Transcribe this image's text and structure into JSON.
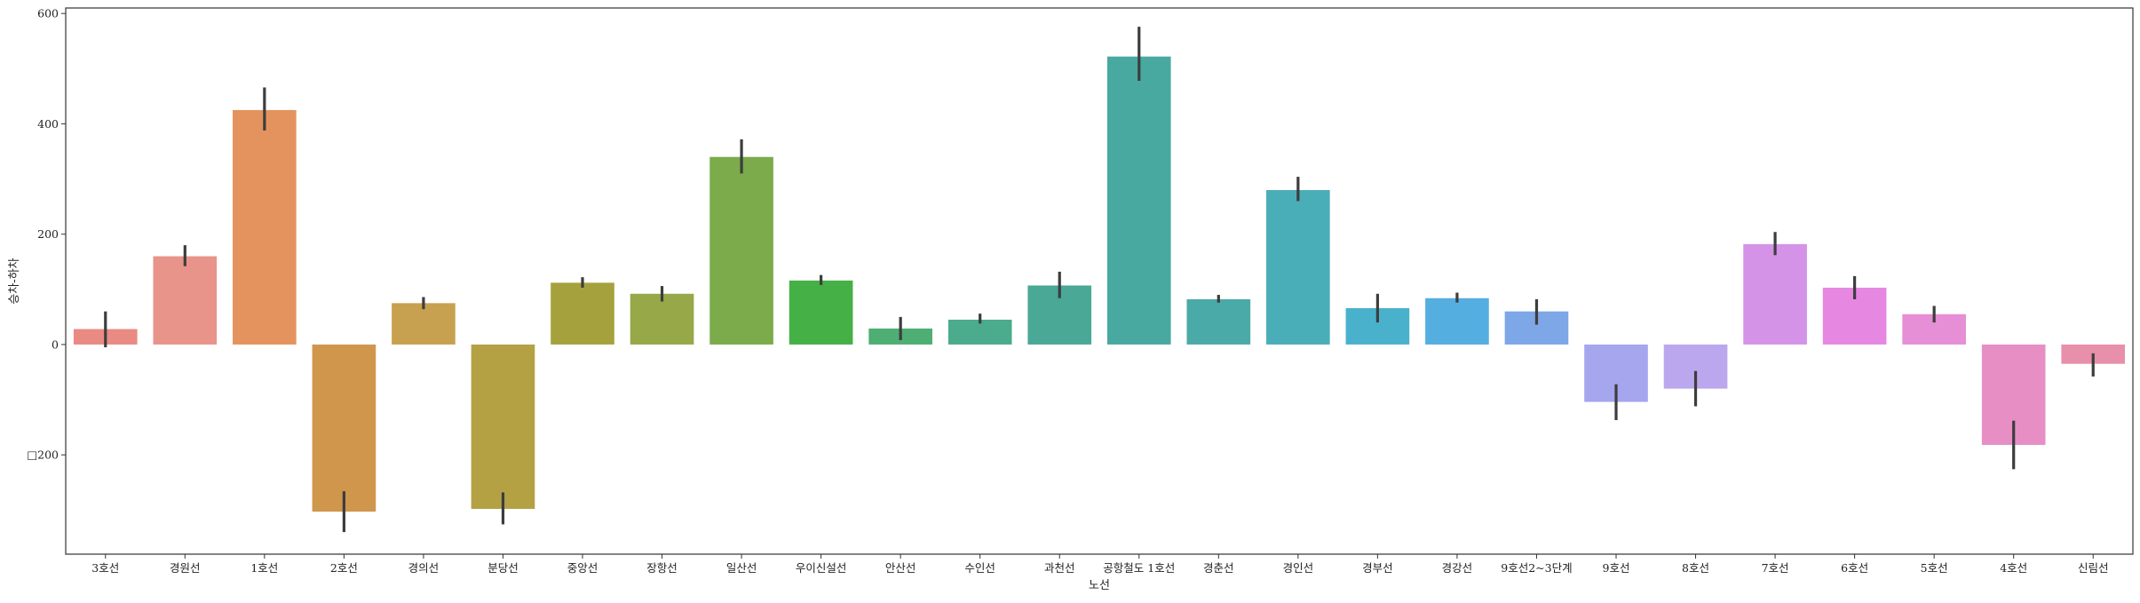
{
  "chart_data": {
    "type": "bar",
    "title": "",
    "xlabel": "노선",
    "ylabel": "승차-하차",
    "ylim": [
      -380,
      610
    ],
    "yticks": [
      {
        "value": 600,
        "label": "600"
      },
      {
        "value": 400,
        "label": "400"
      },
      {
        "value": 200,
        "label": "200"
      },
      {
        "value": 0,
        "label": "0"
      },
      {
        "value": -200,
        "label": "□200"
      }
    ],
    "grid": false,
    "legend": "none",
    "categories": [
      "3호선",
      "경원선",
      "1호선",
      "2호선",
      "경의선",
      "분당선",
      "중앙선",
      "장항선",
      "일산선",
      "우이신설선",
      "안산선",
      "수인선",
      "과천선",
      "공항철도 1호선",
      "경춘선",
      "경인선",
      "경부선",
      "경강선",
      "9호선2~3단계",
      "9호선",
      "8호선",
      "7호선",
      "6호선",
      "5호선",
      "4호선",
      "신림선"
    ],
    "values": [
      28,
      160,
      425,
      -303,
      75,
      -298,
      112,
      92,
      340,
      116,
      29,
      45,
      107,
      522,
      82,
      280,
      66,
      84,
      60,
      -104,
      -80,
      182,
      103,
      55,
      -182,
      -35
    ],
    "error_low": [
      -5,
      142,
      388,
      -340,
      64,
      -326,
      103,
      78,
      310,
      108,
      8,
      38,
      84,
      478,
      76,
      260,
      40,
      76,
      36,
      -137,
      -112,
      162,
      82,
      40,
      -226,
      -58
    ],
    "error_high": [
      60,
      180,
      466,
      -266,
      86,
      -268,
      122,
      106,
      372,
      126,
      50,
      56,
      132,
      576,
      90,
      304,
      92,
      94,
      82,
      -72,
      -48,
      204,
      124,
      70,
      -138,
      -16
    ],
    "colors": [
      "#e98a83",
      "#e8948a",
      "#e4935e",
      "#cf964c",
      "#c8a150",
      "#b3a144",
      "#a5a23e",
      "#96a848",
      "#7bab4b",
      "#45b045",
      "#4eae74",
      "#4aac8c",
      "#4aa897",
      "#48a9a1",
      "#4aaaa8",
      "#4aaeb8",
      "#4ab1cc",
      "#55aee0",
      "#7da7e6",
      "#a5a6ee",
      "#bba7ee",
      "#d493e6",
      "#e688e1",
      "#e68ed6",
      "#e78fc4",
      "#e78fab"
    ]
  }
}
